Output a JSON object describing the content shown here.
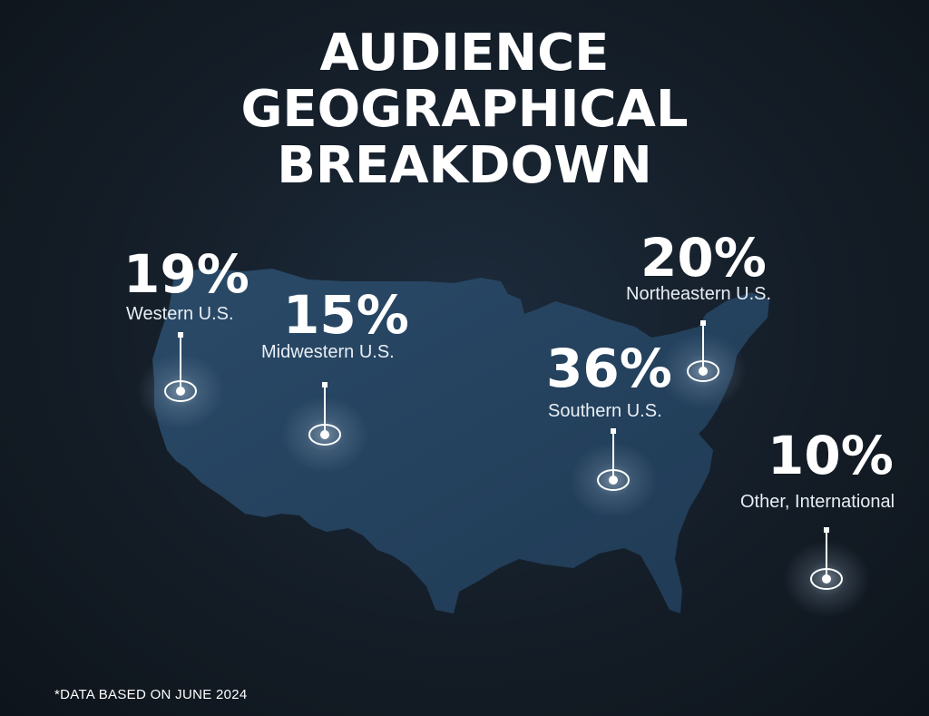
{
  "title": {
    "line1": "AUDIENCE",
    "line2": "GEOGRAPHICAL",
    "line3": "BREAKDOWN"
  },
  "regions": [
    {
      "name": "Western U.S.",
      "percent": "19%",
      "share": 19
    },
    {
      "name": "Midwestern U.S.",
      "percent": "15%",
      "share": 15
    },
    {
      "name": "Northeastern U.S.",
      "percent": "20%",
      "share": 20
    },
    {
      "name": "Southern U.S.",
      "percent": "36%",
      "share": 36
    },
    {
      "name": "Other, International",
      "percent": "10%",
      "share": 10
    }
  ],
  "footnote": "*DATA BASED ON JUNE 2024",
  "colors": {
    "background": "#141d27",
    "map_fill": "#26435e",
    "text": "#ffffff",
    "marker_glow": "#8fa6bd"
  }
}
